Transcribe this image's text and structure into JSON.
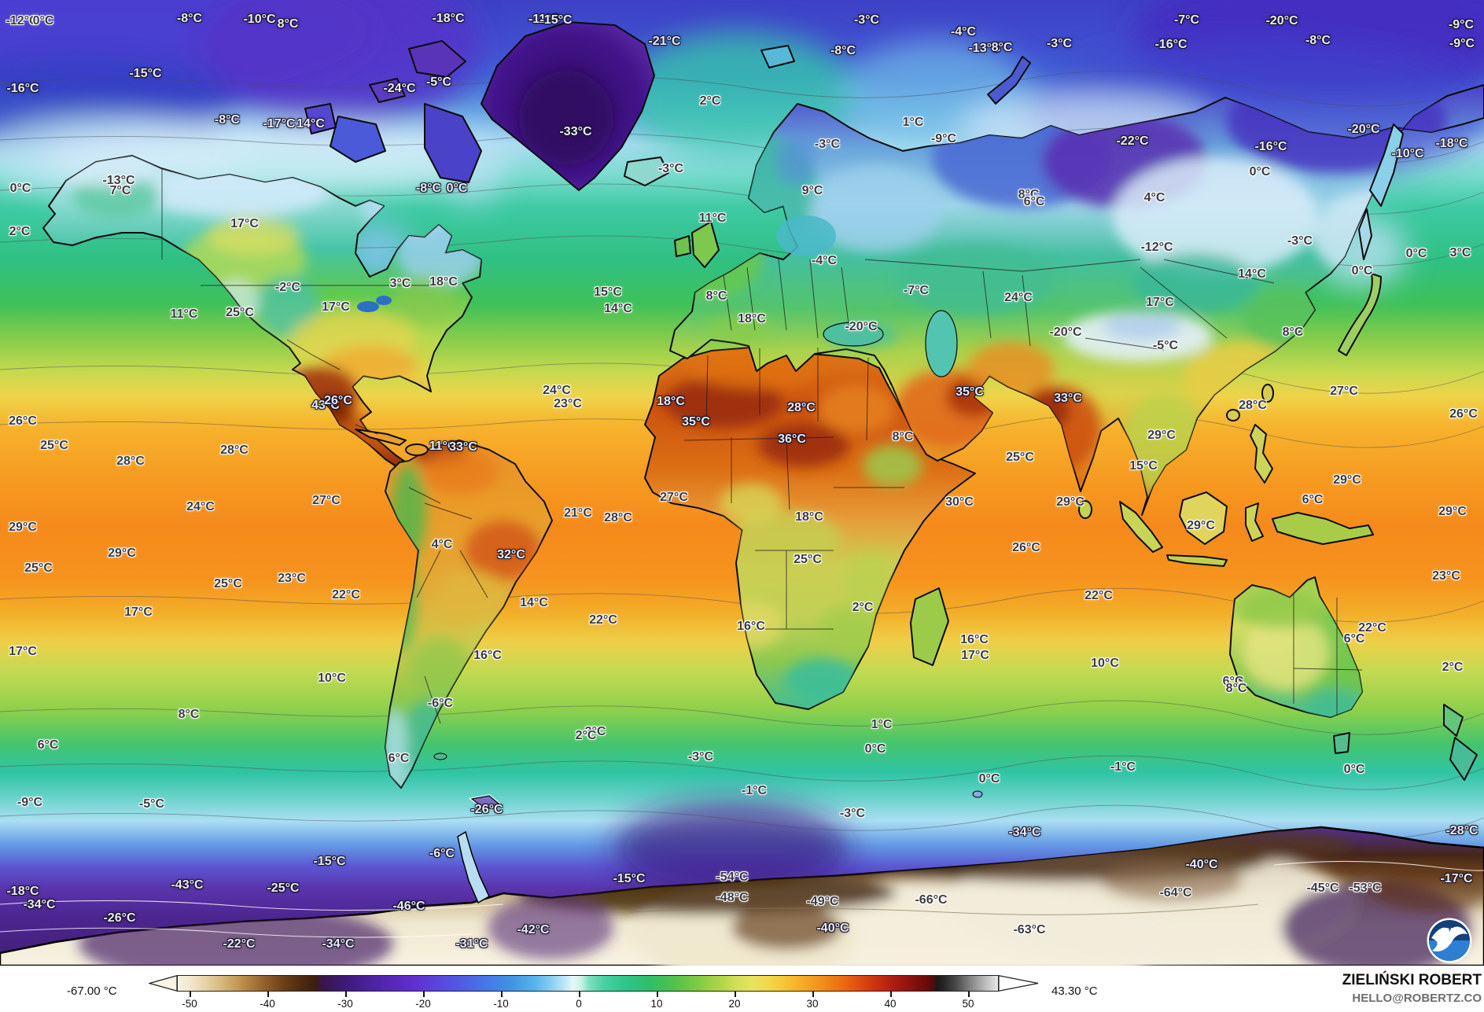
{
  "footer": {
    "author": "ZIELIŃSKI ROBERT",
    "email": "HELLO@ROBERTZ.CO"
  },
  "colorbar": {
    "min_label": "-67.00 °C",
    "max_label": "43.30 °C",
    "ticks": [
      "-50",
      "-40",
      "-30",
      "-20",
      "-10",
      "0",
      "10",
      "20",
      "30",
      "40",
      "50"
    ]
  },
  "logo": {
    "text": "NOAA"
  },
  "colors": {
    "ocean_cold": "#3d41c6",
    "ocean_warm": "#f58a1c",
    "arctic_purple": "#4a1a8c",
    "antarctic_cream": "#f4eedc",
    "antarctic_brown": "#3c2008",
    "noaa_navy": "#14417c",
    "noaa_light_blue": "#2e7ed2"
  },
  "map": {
    "labels": [
      [
        "-12°C",
        28,
        27,
        "d"
      ],
      [
        "0°C",
        55,
        27,
        "d"
      ],
      [
        "-8°C",
        241,
        24,
        "l"
      ],
      [
        "-10°C",
        330,
        25,
        "l"
      ],
      [
        "8°C",
        366,
        31,
        "l"
      ],
      [
        "-18°C",
        570,
        24,
        "l"
      ],
      [
        "-11°C",
        692,
        25,
        "l"
      ],
      [
        "-15°C",
        707,
        26,
        "l"
      ],
      [
        "-3°C",
        1102,
        26,
        "l"
      ],
      [
        "-4°C",
        1225,
        41,
        "l"
      ],
      [
        "-8°C",
        1072,
        65,
        "l"
      ],
      [
        "-13°C",
        1252,
        62,
        "l"
      ],
      [
        "8°C",
        1274,
        61,
        "l"
      ],
      [
        "-7°C",
        1509,
        26,
        "l"
      ],
      [
        "-20°C",
        1630,
        27,
        "l"
      ],
      [
        "-9°C",
        1858,
        32,
        "l"
      ],
      [
        "-9°C",
        1859,
        56,
        "l"
      ],
      [
        "-8°C",
        1676,
        52,
        "l"
      ],
      [
        "-3°C",
        1347,
        56,
        "l"
      ],
      [
        "-16°C",
        1489,
        57,
        "l"
      ],
      [
        "-21°C",
        845,
        53,
        "l"
      ],
      [
        "-15°C",
        185,
        94,
        "l"
      ],
      [
        "-16°C",
        29,
        113,
        "l"
      ],
      [
        "-24°C",
        508,
        113,
        "l"
      ],
      [
        "-5°C",
        558,
        105,
        "l"
      ],
      [
        "-8°C",
        289,
        153,
        "l"
      ],
      [
        "-17°C",
        355,
        158,
        "l"
      ],
      [
        "14°C",
        395,
        158,
        "l"
      ],
      [
        "-33°C",
        732,
        168,
        "l"
      ],
      [
        "2°C",
        903,
        129,
        "d"
      ],
      [
        "1°C",
        1161,
        156,
        "d"
      ],
      [
        "-9°C",
        1200,
        177,
        "d"
      ],
      [
        "-3°C",
        1052,
        184,
        "d"
      ],
      [
        "-3°C",
        853,
        215,
        "d"
      ],
      [
        "-22°C",
        1440,
        180,
        "l"
      ],
      [
        "-20°C",
        1734,
        165,
        "l"
      ],
      [
        "-18°C",
        1846,
        183,
        "l"
      ],
      [
        "-10°C",
        1790,
        196,
        "l"
      ],
      [
        "-16°C",
        1616,
        187,
        "l"
      ],
      [
        "0°C",
        1602,
        219,
        "d"
      ],
      [
        "-13°C",
        151,
        230,
        "d"
      ],
      [
        "7°C",
        153,
        243,
        "d"
      ],
      [
        "0°C",
        26,
        240,
        "d"
      ],
      [
        "-8°C",
        545,
        240,
        "l"
      ],
      [
        "0°C",
        581,
        240,
        "l"
      ],
      [
        "9°C",
        1033,
        243,
        "d"
      ],
      [
        "8°C",
        1308,
        248,
        "d"
      ],
      [
        "6°C",
        1315,
        257,
        "d"
      ],
      [
        "4°C",
        1468,
        252,
        "d"
      ],
      [
        "2°C",
        25,
        295,
        "d"
      ],
      [
        "17°C",
        311,
        285,
        "d"
      ],
      [
        "11°C",
        906,
        278,
        "d"
      ],
      [
        "-4°C",
        1048,
        332,
        "d"
      ],
      [
        "-3°C",
        1653,
        307,
        "d"
      ],
      [
        "-12°C",
        1471,
        315,
        "d"
      ],
      [
        "0°C",
        1801,
        323,
        "d"
      ],
      [
        "3°C",
        1857,
        322,
        "d"
      ],
      [
        "0°C",
        1732,
        345,
        "d"
      ],
      [
        "14°C",
        1592,
        349,
        "d"
      ],
      [
        "15°C",
        773,
        372,
        "d"
      ],
      [
        "14°C",
        786,
        393,
        "d"
      ],
      [
        "8°C",
        911,
        377,
        "d"
      ],
      [
        "18°C",
        956,
        406,
        "d"
      ],
      [
        "-20°C",
        1095,
        416,
        "d"
      ],
      [
        "-7°C",
        1165,
        370,
        "d"
      ],
      [
        "24°C",
        1295,
        379,
        "d"
      ],
      [
        "17°C",
        1475,
        385,
        "d"
      ],
      [
        "-20°C",
        1355,
        423,
        "d"
      ],
      [
        "8°C",
        1644,
        423,
        "d"
      ],
      [
        "-2°C",
        366,
        366,
        "d"
      ],
      [
        "3°C",
        509,
        361,
        "d"
      ],
      [
        "18°C",
        564,
        359,
        "d"
      ],
      [
        "11°C",
        234,
        400,
        "d"
      ],
      [
        "25°C",
        305,
        398,
        "d"
      ],
      [
        "17°C",
        427,
        391,
        "d"
      ],
      [
        "-5°C",
        1482,
        440,
        "d"
      ],
      [
        "26°C",
        29,
        536,
        "d"
      ],
      [
        "25°C",
        69,
        567,
        "d"
      ],
      [
        "28°C",
        166,
        587,
        "d"
      ],
      [
        "28°C",
        298,
        573,
        "d"
      ],
      [
        "24°C",
        708,
        497,
        "d"
      ],
      [
        "23°C",
        722,
        514,
        "d"
      ],
      [
        "43°C",
        414,
        516,
        "l"
      ],
      [
        "26°C",
        430,
        510,
        "l"
      ],
      [
        "11°C",
        563,
        568,
        "l"
      ],
      [
        "33°C",
        589,
        569,
        "l"
      ],
      [
        "18°C",
        853,
        511,
        "l"
      ],
      [
        "35°C",
        885,
        537,
        "l"
      ],
      [
        "28°C",
        1019,
        519,
        "l"
      ],
      [
        "36°C",
        1007,
        559,
        "l"
      ],
      [
        "8°C",
        1148,
        556,
        "d"
      ],
      [
        "35°C",
        1233,
        499,
        "l"
      ],
      [
        "27°C",
        857,
        633,
        "d"
      ],
      [
        "21°C",
        735,
        653,
        "d"
      ],
      [
        "28°C",
        786,
        659,
        "d"
      ],
      [
        "32°C",
        650,
        706,
        "l"
      ],
      [
        "18°C",
        1029,
        658,
        "d"
      ],
      [
        "30°C",
        1220,
        639,
        "d"
      ],
      [
        "25°C",
        1027,
        712,
        "d"
      ],
      [
        "14°C",
        679,
        767,
        "d"
      ],
      [
        "22°C",
        767,
        789,
        "d"
      ],
      [
        "16°C",
        955,
        797,
        "d"
      ],
      [
        "2°C",
        1097,
        773,
        "d"
      ],
      [
        "16°C",
        1239,
        814,
        "d"
      ],
      [
        "17°C",
        1240,
        834,
        "d"
      ],
      [
        "25°C",
        1297,
        582,
        "d"
      ],
      [
        "33°C",
        1358,
        507,
        "l"
      ],
      [
        "27°C",
        1709,
        498,
        "d"
      ],
      [
        "26°C",
        1861,
        527,
        "d"
      ],
      [
        "28°C",
        1593,
        516,
        "d"
      ],
      [
        "29°C",
        1477,
        554,
        "d"
      ],
      [
        "15°C",
        1454,
        593,
        "d"
      ],
      [
        "29°C",
        1361,
        639,
        "d"
      ],
      [
        "29°C",
        1713,
        611,
        "d"
      ],
      [
        "6°C",
        1669,
        636,
        "d"
      ],
      [
        "29°C",
        1847,
        651,
        "d"
      ],
      [
        "29°C",
        1527,
        669,
        "d"
      ],
      [
        "26°C",
        1305,
        697,
        "d"
      ],
      [
        "23°C",
        1839,
        733,
        "d"
      ],
      [
        "22°C",
        1397,
        758,
        "d"
      ],
      [
        "22°C",
        1745,
        799,
        "d"
      ],
      [
        "6°C",
        1722,
        813,
        "d"
      ],
      [
        "10°C",
        1405,
        844,
        "d"
      ],
      [
        "2°C",
        1847,
        849,
        "d"
      ],
      [
        "27°C",
        415,
        637,
        "d"
      ],
      [
        "24°C",
        255,
        645,
        "d"
      ],
      [
        "29°C",
        29,
        671,
        "d"
      ],
      [
        "29°C",
        155,
        704,
        "d"
      ],
      [
        "25°C",
        49,
        723,
        "d"
      ],
      [
        "25°C",
        290,
        743,
        "d"
      ],
      [
        "23°C",
        371,
        736,
        "d"
      ],
      [
        "22°C",
        440,
        757,
        "d"
      ],
      [
        "17°C",
        176,
        779,
        "d"
      ],
      [
        "17°C",
        29,
        829,
        "d"
      ],
      [
        "4°C",
        562,
        693,
        "d"
      ],
      [
        "16°C",
        620,
        834,
        "d"
      ],
      [
        "10°C",
        422,
        863,
        "d"
      ],
      [
        "8°C",
        240,
        909,
        "d"
      ],
      [
        "6°C",
        61,
        948,
        "d"
      ],
      [
        "-6°C",
        560,
        895,
        "d"
      ],
      [
        "6°C",
        507,
        965,
        "d"
      ],
      [
        "-9°C",
        38,
        1021,
        "d"
      ],
      [
        "-5°C",
        193,
        1023,
        "d"
      ],
      [
        "-26°C",
        619,
        1030,
        "l"
      ],
      [
        "-6°C",
        562,
        1086,
        "l"
      ],
      [
        "-15°C",
        419,
        1096,
        "l"
      ],
      [
        "-18°C",
        29,
        1134,
        "l"
      ],
      [
        "-34°C",
        50,
        1151,
        "l"
      ],
      [
        "-43°C",
        238,
        1126,
        "l"
      ],
      [
        "-25°C",
        360,
        1130,
        "l"
      ],
      [
        "-26°C",
        152,
        1168,
        "l"
      ],
      [
        "-46°C",
        520,
        1153,
        "l"
      ],
      [
        "-22°C",
        304,
        1201,
        "l"
      ],
      [
        "-34°C",
        430,
        1201,
        "l"
      ],
      [
        "-31°C",
        600,
        1201,
        "l"
      ],
      [
        "3°C",
        757,
        931,
        "d"
      ],
      [
        "2°C",
        745,
        936,
        "d"
      ],
      [
        "-3°C",
        891,
        963,
        "d"
      ],
      [
        "1°C",
        1121,
        922,
        "d"
      ],
      [
        "0°C",
        1113,
        953,
        "d"
      ],
      [
        "-1°C",
        959,
        1006,
        "d"
      ],
      [
        "-3°C",
        1084,
        1035,
        "d"
      ],
      [
        "0°C",
        1258,
        991,
        "d"
      ],
      [
        "-15°C",
        800,
        1118,
        "l"
      ],
      [
        "-54°C",
        931,
        1116,
        "d"
      ],
      [
        "-48°C",
        931,
        1142,
        "d"
      ],
      [
        "-49°C",
        1046,
        1147,
        "d"
      ],
      [
        "-66°C",
        1184,
        1145,
        "d"
      ],
      [
        "-40°C",
        1059,
        1181,
        "l"
      ],
      [
        "-42°C",
        678,
        1183,
        "l"
      ],
      [
        "6°C",
        1568,
        867,
        "d"
      ],
      [
        "8°C",
        1572,
        876,
        "d"
      ],
      [
        "-1°C",
        1428,
        976,
        "d"
      ],
      [
        "0°C",
        1722,
        979,
        "d"
      ],
      [
        "-34°C",
        1303,
        1059,
        "l"
      ],
      [
        "-28°C",
        1859,
        1057,
        "l"
      ],
      [
        "-40°C",
        1528,
        1100,
        "l"
      ],
      [
        "-64°C",
        1495,
        1136,
        "d"
      ],
      [
        "-45°C",
        1682,
        1130,
        "d"
      ],
      [
        "-53°C",
        1736,
        1130,
        "d"
      ],
      [
        "-17°C",
        1852,
        1118,
        "l"
      ],
      [
        "-63°C",
        1309,
        1183,
        "d"
      ]
    ]
  }
}
